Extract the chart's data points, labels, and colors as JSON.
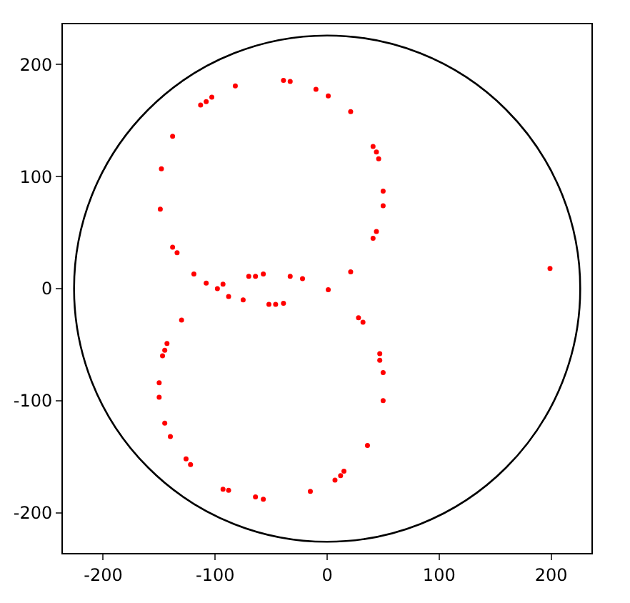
{
  "chart_data": {
    "type": "scatter",
    "marker": "circle",
    "grid": false,
    "xlim": [
      -236,
      236
    ],
    "ylim": [
      -236,
      236
    ],
    "xticks": [
      -200,
      -100,
      0,
      100,
      200
    ],
    "yticks": [
      -200,
      -100,
      0,
      100,
      200
    ],
    "series": [
      {
        "color": "#ff0000",
        "x": [
          -82,
          -39,
          -33,
          -10,
          1,
          21,
          -103,
          -108,
          -113,
          -138,
          41,
          44,
          46,
          -148,
          50,
          50,
          -149,
          44,
          41,
          -138,
          -134,
          -119,
          -108,
          -93,
          -98,
          -88,
          -75,
          -70,
          -64,
          -57,
          -33,
          -22,
          21,
          1,
          -52,
          -46,
          -39,
          28,
          32,
          -130,
          -143,
          -145,
          -147,
          47,
          47,
          50,
          -150,
          -150,
          50,
          -145,
          -140,
          36,
          -126,
          -122,
          15,
          12,
          7,
          -93,
          -88,
          -15,
          -64,
          -57,
          199
        ],
        "values": [
          181,
          186,
          185,
          178,
          172,
          158,
          171,
          167,
          164,
          136,
          127,
          122,
          116,
          107,
          87,
          74,
          71,
          51,
          45,
          37,
          32,
          13,
          5,
          4,
          0,
          -7,
          -10,
          11,
          11,
          13,
          11,
          9,
          15,
          -1,
          -14,
          -14,
          -13,
          -26,
          -30,
          -28,
          -49,
          -55,
          -60,
          -58,
          -64,
          -75,
          -84,
          -97,
          -100,
          -120,
          -132,
          -140,
          -152,
          -157,
          -163,
          -167,
          -171,
          -179,
          -180,
          -181,
          -186,
          -188,
          18
        ]
      }
    ]
  }
}
